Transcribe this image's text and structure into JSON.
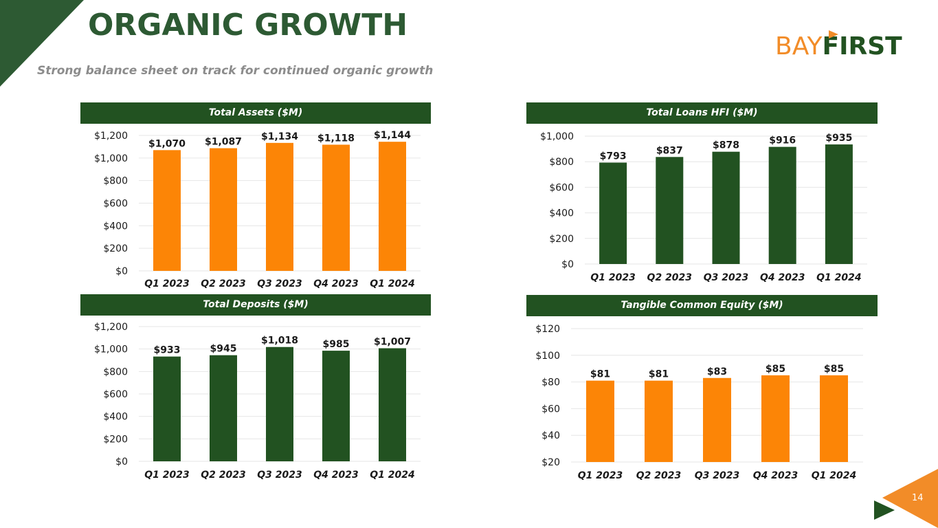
{
  "slide": {
    "title": "ORGANIC GROWTH",
    "subtitle": "Strong balance sheet on track for continued organic growth",
    "logo": {
      "part1": "BAY",
      "part2": "FIRST"
    },
    "page_number": "14"
  },
  "colors": {
    "green": "#225221",
    "orange": "#fc8506",
    "grid": "#e6e6e6",
    "text": "#1a1a1a"
  },
  "chart_data": [
    {
      "type": "bar",
      "title": "Total Assets  ($M)",
      "categories": [
        "Q1 2023",
        "Q2 2023",
        "Q3 2023",
        "Q4 2023",
        "Q1 2024"
      ],
      "values": [
        1070,
        1087,
        1134,
        1118,
        1144
      ],
      "data_labels": [
        "$1,070",
        "$1,087",
        "$1,134",
        "$1,118",
        "$1,144"
      ],
      "ylim": [
        0,
        1200
      ],
      "yticks": [
        0,
        200,
        400,
        600,
        800,
        1000,
        1200
      ],
      "ytick_labels": [
        "$0",
        "$200",
        "$400",
        "$600",
        "$800",
        "$1,000",
        "$1,200"
      ],
      "color": "#fc8506",
      "grid": true
    },
    {
      "type": "bar",
      "title": "Total Loans HFI ($M)",
      "categories": [
        "Q1 2023",
        "Q2 2023",
        "Q3 2023",
        "Q4 2023",
        "Q1 2024"
      ],
      "values": [
        793,
        837,
        878,
        916,
        935
      ],
      "data_labels": [
        "$793",
        "$837",
        "$878",
        "$916",
        "$935"
      ],
      "ylim": [
        0,
        1000
      ],
      "yticks": [
        0,
        200,
        400,
        600,
        800,
        1000
      ],
      "ytick_labels": [
        "$0",
        "$200",
        "$400",
        "$600",
        "$800",
        "$1,000"
      ],
      "color": "#225221",
      "grid": true
    },
    {
      "type": "bar",
      "title": "Total Deposits ($M)",
      "categories": [
        "Q1 2023",
        "Q2 2023",
        "Q3 2023",
        "Q4 2023",
        "Q1 2024"
      ],
      "values": [
        933,
        945,
        1018,
        985,
        1007
      ],
      "data_labels": [
        "$933",
        "$945",
        "$1,018",
        "$985",
        "$1,007"
      ],
      "ylim": [
        0,
        1200
      ],
      "yticks": [
        0,
        200,
        400,
        600,
        800,
        1000,
        1200
      ],
      "ytick_labels": [
        "$0",
        "$200",
        "$400",
        "$600",
        "$800",
        "$1,000",
        "$1,200"
      ],
      "color": "#225221",
      "grid": true
    },
    {
      "type": "bar",
      "title": "Tangible Common Equity ($M)",
      "categories": [
        "Q1 2023",
        "Q2 2023",
        "Q3 2023",
        "Q4 2023",
        "Q1 2024"
      ],
      "values": [
        81,
        81,
        83,
        85,
        85
      ],
      "data_labels": [
        "$81",
        "$81",
        "$83",
        "$85",
        "$85"
      ],
      "ylim": [
        20,
        120
      ],
      "yticks": [
        20,
        40,
        60,
        80,
        100,
        120
      ],
      "ytick_labels": [
        "$20",
        "$40",
        "$60",
        "$80",
        "$100",
        "$120"
      ],
      "color": "#fc8506",
      "grid": true
    }
  ]
}
